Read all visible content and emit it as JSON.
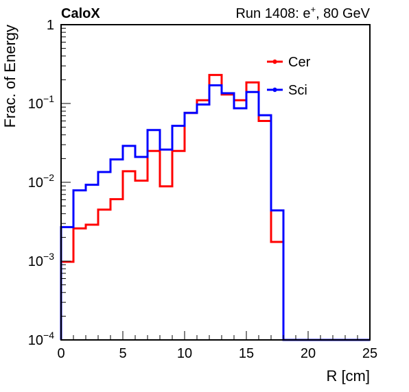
{
  "chart_data": {
    "type": "line",
    "style": "step-histogram",
    "title_left": "CaloX",
    "title_right": "Run 1408: e",
    "title_right_sup": "+",
    "title_right_tail": ", 80 GeV",
    "xlabel": "R [cm]",
    "ylabel": "Frac. of Energy",
    "xlim": [
      0,
      25
    ],
    "ylim": [
      0.0001,
      1
    ],
    "yscale": "log",
    "grid": false,
    "legend_position": "top-right",
    "x_ticks": [
      {
        "value": 0,
        "label": "0"
      },
      {
        "value": 5,
        "label": "5"
      },
      {
        "value": 10,
        "label": "10"
      },
      {
        "value": 15,
        "label": "15"
      },
      {
        "value": 20,
        "label": "20"
      },
      {
        "value": 25,
        "label": "25"
      }
    ],
    "y_ticks": [
      {
        "value": 0.0001,
        "base": "10",
        "exp": "−4"
      },
      {
        "value": 0.001,
        "base": "10",
        "exp": "−3"
      },
      {
        "value": 0.01,
        "base": "10",
        "exp": "−2"
      },
      {
        "value": 0.1,
        "base": "10",
        "exp": "−1"
      },
      {
        "value": 1,
        "base": "1",
        "exp": ""
      }
    ],
    "bin_edges": [
      0,
      1,
      2,
      3,
      4,
      5,
      6,
      7,
      8,
      9,
      10,
      11,
      12,
      13,
      14,
      15,
      16,
      17,
      18,
      19,
      20,
      21,
      22,
      23,
      24,
      25
    ],
    "series": [
      {
        "name": "Cer",
        "color": "#ff0000",
        "values": [
          0.00098,
          0.0026,
          0.0029,
          0.0045,
          0.0061,
          0.0138,
          0.0105,
          0.025,
          0.0089,
          0.025,
          0.076,
          0.11,
          0.23,
          0.13,
          0.11,
          0.185,
          0.06,
          0.00175,
          0,
          0,
          0,
          0,
          0,
          0,
          0
        ]
      },
      {
        "name": "Sci",
        "color": "#0000ff",
        "values": [
          0.0027,
          0.0079,
          0.0093,
          0.0135,
          0.0195,
          0.029,
          0.021,
          0.046,
          0.026,
          0.052,
          0.076,
          0.097,
          0.17,
          0.135,
          0.087,
          0.14,
          0.071,
          0.0044,
          0,
          0,
          0,
          0,
          0,
          0,
          0
        ]
      }
    ]
  }
}
